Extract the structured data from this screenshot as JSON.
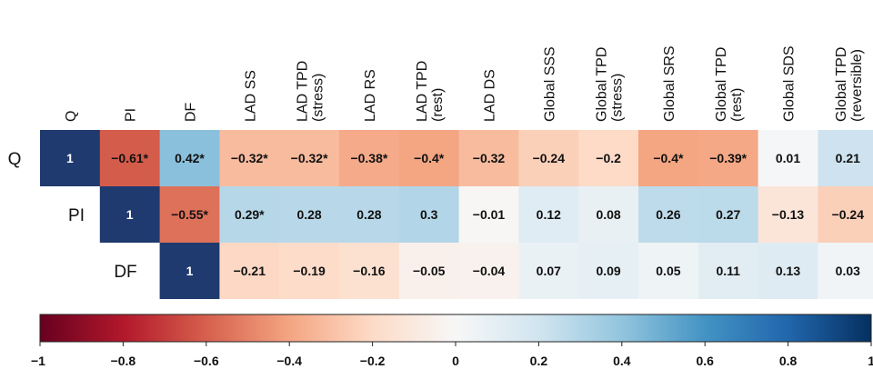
{
  "chart_data": {
    "type": "heatmap",
    "title": "",
    "xlabel": "",
    "ylabel": "",
    "columns": [
      [
        "Q"
      ],
      [
        "PI"
      ],
      [
        "DF"
      ],
      [
        "LAD SS"
      ],
      [
        "LAD TPD",
        "(stress)"
      ],
      [
        "LAD RS"
      ],
      [
        "LAD TPD",
        "(rest)"
      ],
      [
        "LAD DS"
      ],
      [
        "Global SSS"
      ],
      [
        "Global TPD",
        "(stress)"
      ],
      [
        "Global SRS"
      ],
      [
        "Global TPD",
        "(rest)"
      ],
      [
        "Global SDS"
      ],
      [
        "Global TPD",
        "(reversible)"
      ]
    ],
    "rows": [
      "Q",
      "PI",
      "DF"
    ],
    "cells": [
      [
        {
          "v": 1,
          "t": "1"
        },
        {
          "v": -0.61,
          "t": "−0.61*"
        },
        {
          "v": 0.42,
          "t": "0.42*"
        },
        {
          "v": -0.32,
          "t": "−0.32*"
        },
        {
          "v": -0.32,
          "t": "−0.32*"
        },
        {
          "v": -0.38,
          "t": "−0.38*"
        },
        {
          "v": -0.4,
          "t": "−0.4*"
        },
        {
          "v": -0.32,
          "t": "−0.32"
        },
        {
          "v": -0.24,
          "t": "−0.24"
        },
        {
          "v": -0.2,
          "t": "−0.2"
        },
        {
          "v": -0.4,
          "t": "−0.4*"
        },
        {
          "v": -0.39,
          "t": "−0.39*"
        },
        {
          "v": 0.01,
          "t": "0.01"
        },
        {
          "v": 0.21,
          "t": "0.21"
        }
      ],
      [
        null,
        {
          "v": 1,
          "t": "1"
        },
        {
          "v": -0.55,
          "t": "−0.55*"
        },
        {
          "v": 0.29,
          "t": "0.29*"
        },
        {
          "v": 0.28,
          "t": "0.28"
        },
        {
          "v": 0.28,
          "t": "0.28"
        },
        {
          "v": 0.3,
          "t": "0.3"
        },
        {
          "v": -0.01,
          "t": "−0.01"
        },
        {
          "v": 0.12,
          "t": "0.12"
        },
        {
          "v": 0.08,
          "t": "0.08"
        },
        {
          "v": 0.26,
          "t": "0.26"
        },
        {
          "v": 0.27,
          "t": "0.27"
        },
        {
          "v": -0.13,
          "t": "−0.13"
        },
        {
          "v": -0.24,
          "t": "−0.24"
        }
      ],
      [
        null,
        null,
        {
          "v": 1,
          "t": "1"
        },
        {
          "v": -0.21,
          "t": "−0.21"
        },
        {
          "v": -0.19,
          "t": "−0.19"
        },
        {
          "v": -0.16,
          "t": "−0.16"
        },
        {
          "v": -0.05,
          "t": "−0.05"
        },
        {
          "v": -0.04,
          "t": "−0.04"
        },
        {
          "v": 0.07,
          "t": "0.07"
        },
        {
          "v": 0.09,
          "t": "0.09"
        },
        {
          "v": 0.05,
          "t": "0.05"
        },
        {
          "v": 0.11,
          "t": "0.11"
        },
        {
          "v": 0.13,
          "t": "0.13"
        },
        {
          "v": 0.03,
          "t": "0.03"
        }
      ]
    ],
    "colorbar": {
      "range": [
        -1,
        1
      ],
      "ticks": [
        -1,
        -0.8,
        -0.6,
        -0.4,
        -0.2,
        0,
        0.2,
        0.4,
        0.6,
        0.8,
        1
      ],
      "tick_labels": [
        "−1",
        "−0.8",
        "−0.6",
        "−0.4",
        "−0.2",
        "0",
        "0.2",
        "0.4",
        "0.6",
        "0.8",
        "1"
      ],
      "colormap": "RdBu",
      "colors": [
        "#67001f",
        "#b2182b",
        "#d6604d",
        "#f4a582",
        "#fddbc7",
        "#f7f7f7",
        "#d1e5f0",
        "#92c5de",
        "#4393c3",
        "#2166ac",
        "#053061"
      ],
      "diagonal_color": "#1f3a6e"
    }
  }
}
